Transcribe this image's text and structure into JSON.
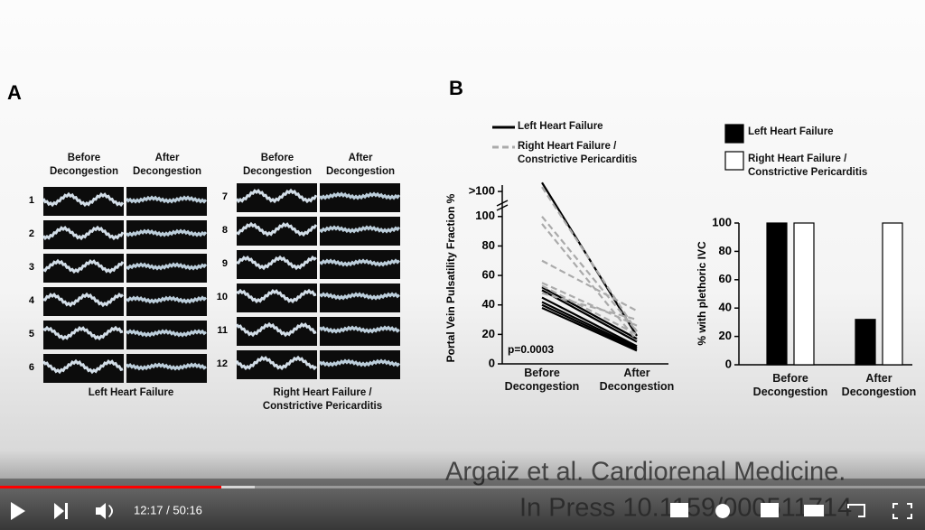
{
  "slide": {
    "panel_a": {
      "label": "A",
      "headers": [
        "Before Decongestion",
        "After Decongestion"
      ],
      "groups": [
        {
          "rows": [
            "1",
            "2",
            "3",
            "4",
            "5",
            "6"
          ],
          "caption": "Left Heart Failure"
        },
        {
          "rows": [
            "7",
            "8",
            "9",
            "10",
            "11",
            "12"
          ],
          "caption": "Right Heart Failure / Constrictive Pericarditis"
        }
      ]
    },
    "panel_b_label": "B",
    "citation": [
      "Argaiz et al. Cardiorenal Medicine.",
      "In Press 10.1159/000511714"
    ]
  },
  "chart_data": [
    {
      "type": "line",
      "ylabel": "Portal Vein Pulsatility Fraction %",
      "categories": [
        "Before Decongestion",
        "After Decongestion"
      ],
      "ylim": [
        0,
        125
      ],
      "yticks": [
        0,
        20,
        40,
        60,
        80,
        100,
        {
          "value": 117,
          "label": ">100"
        }
      ],
      "annotation": "p=0.0003",
      "series": [
        {
          "name": "Left Heart Failure",
          "color": "#000000",
          "dashed": false,
          "patients": [
            [
              123,
              19
            ],
            [
              52,
              17
            ],
            [
              50,
              15
            ],
            [
              45,
              12
            ],
            [
              42,
              11
            ],
            [
              40,
              10
            ],
            [
              38,
              9
            ]
          ]
        },
        {
          "name": "Right Heart Failure / Constrictive Pericarditis",
          "color": "#aaaaaa",
          "dashed": true,
          "patients": [
            [
              120,
              22
            ],
            [
              100,
              22
            ],
            [
              95,
              16
            ],
            [
              70,
              36
            ],
            [
              55,
              26
            ],
            [
              53,
              20
            ],
            [
              48,
              30
            ]
          ]
        }
      ]
    },
    {
      "type": "bar",
      "ylabel": "% with plethoric IVC",
      "categories": [
        "Before Decongestion",
        "After Decongestion"
      ],
      "ylim": [
        0,
        100
      ],
      "yticks": [
        0,
        20,
        40,
        60,
        80,
        100
      ],
      "series": [
        {
          "name": "Left Heart Failure",
          "color": "#000000",
          "values": [
            100,
            32
          ]
        },
        {
          "name": "Right Heart Failure / Constrictive Pericarditis",
          "color": "#ffffff",
          "values": [
            100,
            100
          ]
        }
      ]
    }
  ],
  "player": {
    "time": "12:17 / 50:16"
  }
}
